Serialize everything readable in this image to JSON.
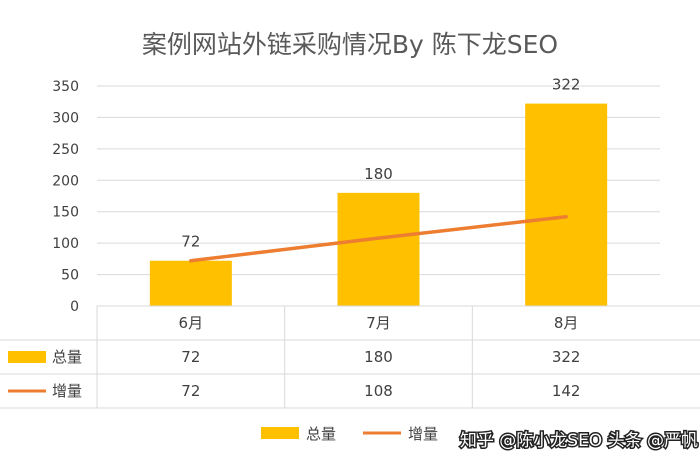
{
  "chart_data": {
    "type": "bar",
    "title": "案例网站外链采购情况By 陈下龙SEO",
    "categories": [
      "6月",
      "7月",
      "8月"
    ],
    "ylim": [
      0,
      350
    ],
    "yticks": [
      0,
      50,
      100,
      150,
      200,
      250,
      300,
      350
    ],
    "grid": true,
    "legend_position": "bottom",
    "series": [
      {
        "name": "总量",
        "type": "bar",
        "values": [
          72,
          180,
          322
        ],
        "color": "#FFC000"
      },
      {
        "name": "增量",
        "type": "line",
        "values": [
          72,
          108,
          142
        ],
        "color": "#ED7D31"
      }
    ],
    "data_labels": [
      "72",
      "180",
      "322"
    ],
    "data_table": true
  },
  "watermark": {
    "text": "知乎 @陈小龙SEO 头条 @严帆",
    "icon": "zhihu-watermark"
  }
}
